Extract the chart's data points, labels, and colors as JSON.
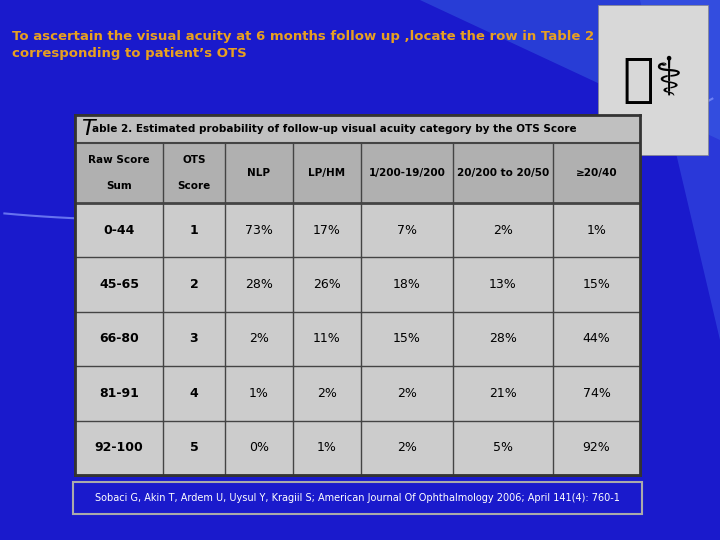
{
  "title_text": "To ascertain the visual acuity at 6 months follow up ,locate the row in Table 2\ncorresponding to patient’s OTS",
  "table_title": "Table 2. Estimated probability of follow-up visual acuity category by the OTS Score",
  "col_headers_line1": [
    "Raw Score",
    "OTS",
    "NLP",
    "LP/HM",
    "1/200-19/200",
    "20/200 to 20/50",
    "≥20/40"
  ],
  "col_headers_line2": [
    "Sum",
    "Score",
    "",
    "",
    "",
    "",
    ""
  ],
  "rows": [
    [
      "0-44",
      "1",
      "73%",
      "17%",
      "7%",
      "2%",
      "1%"
    ],
    [
      "45-65",
      "2",
      "28%",
      "26%",
      "18%",
      "13%",
      "15%"
    ],
    [
      "66-80",
      "3",
      "2%",
      "11%",
      "15%",
      "28%",
      "44%"
    ],
    [
      "81-91",
      "4",
      "1%",
      "2%",
      "2%",
      "21%",
      "74%"
    ],
    [
      "92-100",
      "5",
      "0%",
      "1%",
      "2%",
      "5%",
      "92%"
    ]
  ],
  "citation": "Sobaci G, Akin T, Ardem U, Uysul Y, Kragiil S; American Journal Of Ophthalmology 2006; April 141(4): 760-1",
  "bg_color": "#1a1acc",
  "table_bg": "#c0c0c0",
  "header_bg": "#b0b0b0",
  "data_row_bg": "#cccccc",
  "title_color": "#e8a020",
  "citation_color": "#ffffff",
  "citation_border": "#aaaaaa",
  "cell_border_color": "#444444",
  "table_border_color": "#333333",
  "doctor_bg": "#d8d8d8"
}
